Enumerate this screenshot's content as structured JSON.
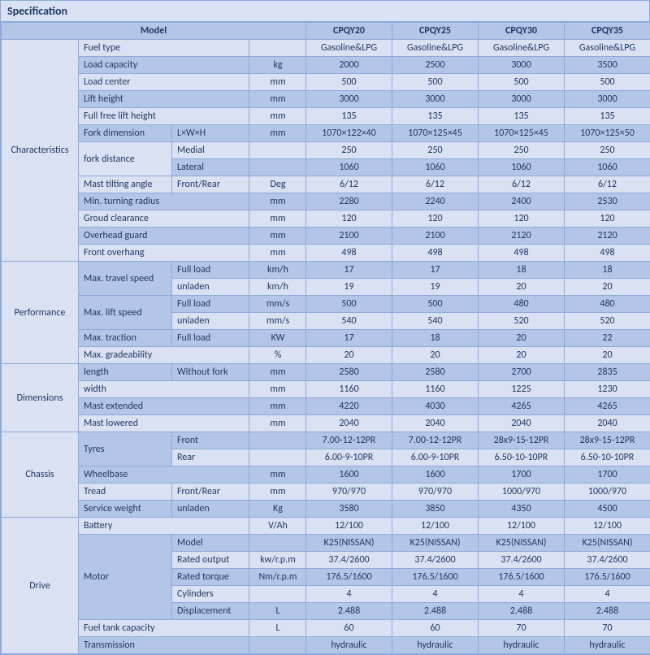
{
  "title": "Specification",
  "headers": {
    "model": "Model",
    "m1": "CPQY20",
    "m2": "CPQY25",
    "m3": "CPQY30",
    "m4": "CPQY35"
  },
  "sections": [
    {
      "name": "Characteristics",
      "rows": [
        {
          "p": "Fuel type",
          "s": "",
          "u": "",
          "v": [
            "Gasoline&LPG",
            "Gasoline&LPG",
            "Gasoline&LPG",
            "Gasoline&LPG"
          ],
          "z": "b"
        },
        {
          "p": "Load capacity",
          "s": "",
          "u": "kg",
          "v": [
            "2000",
            "2500",
            "3000",
            "3500"
          ],
          "z": "a"
        },
        {
          "p": "Load center",
          "s": "",
          "u": "mm",
          "v": [
            "500",
            "500",
            "500",
            "500"
          ],
          "z": "b"
        },
        {
          "p": "Lift height",
          "s": "",
          "u": "mm",
          "v": [
            "3000",
            "3000",
            "3000",
            "3000"
          ],
          "z": "a"
        },
        {
          "p": "Full free lift height",
          "s": "",
          "u": "mm",
          "v": [
            "135",
            "135",
            "135",
            "135"
          ],
          "z": "b"
        },
        {
          "p": "Fork dimension",
          "s": "L×W×H",
          "u": "mm",
          "v": [
            "1070×122×40",
            "1070×125×45",
            "1070×125×45",
            "1070×125×50"
          ],
          "z": "a"
        },
        {
          "p": "fork distance",
          "s": "Medial",
          "u": "",
          "v": [
            "250",
            "250",
            "250",
            "250"
          ],
          "z": "b",
          "rs": 2
        },
        {
          "p": "",
          "s": "Lateral",
          "u": "",
          "v": [
            "1060",
            "1060",
            "1060",
            "1060"
          ],
          "z": "a"
        },
        {
          "p": "Mast tilting angle",
          "s": "Front/Rear",
          "u": "Deg",
          "v": [
            "6/12",
            "6/12",
            "6/12",
            "6/12"
          ],
          "z": "b"
        },
        {
          "p": "Min. turning radius",
          "s": "",
          "u": "mm",
          "v": [
            "2280",
            "2240",
            "2400",
            "2530"
          ],
          "z": "a"
        },
        {
          "p": "Groud clearance",
          "s": "",
          "u": "mm",
          "v": [
            "120",
            "120",
            "120",
            "120"
          ],
          "z": "b"
        },
        {
          "p": "Overhead guard",
          "s": "",
          "u": "mm",
          "v": [
            "2100",
            "2100",
            "2120",
            "2120"
          ],
          "z": "a"
        },
        {
          "p": "Front overhang",
          "s": "",
          "u": "mm",
          "v": [
            "498",
            "498",
            "498",
            "498"
          ],
          "z": "b"
        }
      ]
    },
    {
      "name": "Performance",
      "rows": [
        {
          "p": "Max. travel speed",
          "s": "Full load",
          "u": "km/h",
          "v": [
            "17",
            "17",
            "18",
            "18"
          ],
          "z": "a",
          "rs": 2
        },
        {
          "p": "",
          "s": "unladen",
          "u": "km/h",
          "v": [
            "19",
            "19",
            "20",
            "20"
          ],
          "z": "b"
        },
        {
          "p": "Max. lift speed",
          "s": "Full load",
          "u": "mm/s",
          "v": [
            "500",
            "500",
            "480",
            "480"
          ],
          "z": "a",
          "rs": 2
        },
        {
          "p": "",
          "s": "unladen",
          "u": "mm/s",
          "v": [
            "540",
            "540",
            "520",
            "520"
          ],
          "z": "b"
        },
        {
          "p": "Max. traction",
          "s": "Full load",
          "u": "KW",
          "v": [
            "17",
            "18",
            "20",
            "22"
          ],
          "z": "a"
        },
        {
          "p": "Max. gradeability",
          "s": "",
          "u": "%",
          "v": [
            "20",
            "20",
            "20",
            "20"
          ],
          "z": "b"
        }
      ]
    },
    {
      "name": "Dimensions",
      "rows": [
        {
          "p": "length",
          "s": "Without fork",
          "u": "mm",
          "v": [
            "2580",
            "2580",
            "2700",
            "2835"
          ],
          "z": "a"
        },
        {
          "p": "width",
          "s": "",
          "u": "mm",
          "v": [
            "1160",
            "1160",
            "1225",
            "1230"
          ],
          "z": "b"
        },
        {
          "p": "Mast extended",
          "s": "",
          "u": "mm",
          "v": [
            "4220",
            "4030",
            "4265",
            "4265"
          ],
          "z": "a"
        },
        {
          "p": "Mast lowered",
          "s": "",
          "u": "mm",
          "v": [
            "2040",
            "2040",
            "2040",
            "2040"
          ],
          "z": "b"
        }
      ]
    },
    {
      "name": "Chassis",
      "rows": [
        {
          "p": "Tyres",
          "s": "Front",
          "u": "",
          "v": [
            "7.00-12-12PR",
            "7.00-12-12PR",
            "28x9-15-12PR",
            "28x9-15-12PR"
          ],
          "z": "a",
          "rs": 2
        },
        {
          "p": "",
          "s": "Rear",
          "u": "",
          "v": [
            "6.00-9-10PR",
            "6.00-9-10PR",
            "6.50-10-10PR",
            "6.50-10-10PR"
          ],
          "z": "b"
        },
        {
          "p": "Wheelbase",
          "s": "",
          "u": "mm",
          "v": [
            "1600",
            "1600",
            "1700",
            "1700"
          ],
          "z": "a"
        },
        {
          "p": "Tread",
          "s": "Front/Rear",
          "u": "mm",
          "v": [
            "970/970",
            "970/970",
            "1000/970",
            "1000/970"
          ],
          "z": "b"
        },
        {
          "p": "Service weight",
          "s": "unladen",
          "u": "Kg",
          "v": [
            "3580",
            "3850",
            "4350",
            "4500"
          ],
          "z": "a"
        }
      ]
    },
    {
      "name": "Drive",
      "rows": [
        {
          "p": "Battery",
          "s": "",
          "u": "V/Ah",
          "v": [
            "12/100",
            "12/100",
            "12/100",
            "12/100"
          ],
          "z": "b"
        },
        {
          "p": "Motor",
          "s": "Model",
          "u": "",
          "v": [
            "K25(NISSAN)",
            "K25(NISSAN)",
            "K25(NISSAN)",
            "K25(NISSAN)"
          ],
          "z": "a",
          "rs": 5
        },
        {
          "p": "",
          "s": "Rated output",
          "u": "kw/r.p.m",
          "v": [
            "37.4/2600",
            "37.4/2600",
            "37.4/2600",
            "37.4/2600"
          ],
          "z": "b"
        },
        {
          "p": "",
          "s": "Rated  torque",
          "u": "Nm/r.p.m",
          "v": [
            "176.5/1600",
            "176.5/1600",
            "176.5/1600",
            "176.5/1600"
          ],
          "z": "a"
        },
        {
          "p": "",
          "s": "Cylinders",
          "u": "",
          "v": [
            "4",
            "4",
            "4",
            "4"
          ],
          "z": "b"
        },
        {
          "p": "",
          "s": "Displacement",
          "u": "L",
          "v": [
            "2.488",
            "2.488",
            "2.488",
            "2.488"
          ],
          "z": "a"
        },
        {
          "p": "Fuel tank capacity",
          "s": "",
          "u": "L",
          "v": [
            "60",
            "60",
            "70",
            "70"
          ],
          "z": "b"
        },
        {
          "p": "Transmission",
          "s": "",
          "u": "",
          "v": [
            "hydraulic",
            "hydraulic",
            "hydraulic",
            "hydraulic"
          ],
          "z": "a"
        }
      ]
    }
  ]
}
